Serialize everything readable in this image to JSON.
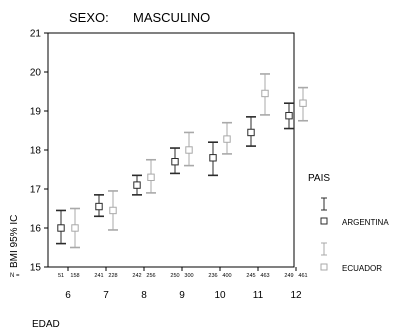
{
  "chart_data": {
    "type": "errorbar",
    "header": {
      "label": "SEXO:",
      "value": "MASCULINO"
    },
    "xlabel": "EDAD",
    "ylabel": "BMI 95% IC",
    "n_label": "N =",
    "categories": [
      "6",
      "7",
      "8",
      "9",
      "10",
      "11",
      "12"
    ],
    "ylim": [
      15,
      21
    ],
    "yticks": [
      15,
      16,
      17,
      18,
      19,
      20,
      21
    ],
    "grid": false,
    "legend": {
      "title": "PAIS",
      "placement": "right"
    },
    "series": [
      {
        "name": "ARGENTINA",
        "color": "#2b2b2b",
        "mean": [
          16.0,
          16.55,
          17.1,
          17.7,
          17.8,
          18.45,
          18.88
        ],
        "lower": [
          15.6,
          16.3,
          16.85,
          17.4,
          17.35,
          18.1,
          18.55
        ],
        "upper": [
          16.45,
          16.85,
          17.35,
          18.05,
          18.2,
          18.85,
          19.2
        ],
        "n": [
          "51",
          "241",
          "242",
          "250",
          "236",
          "245",
          "249"
        ]
      },
      {
        "name": "ECUADOR",
        "color": "#a9a9a9",
        "mean": [
          16.0,
          16.45,
          17.3,
          18.0,
          18.28,
          19.45,
          19.2
        ],
        "lower": [
          15.5,
          15.95,
          16.9,
          17.6,
          17.9,
          18.9,
          18.75
        ],
        "upper": [
          16.5,
          16.95,
          17.75,
          18.45,
          18.7,
          19.95,
          19.6
        ],
        "n": [
          "158",
          "228",
          "256",
          "300",
          "400",
          "463",
          "461"
        ]
      }
    ]
  }
}
